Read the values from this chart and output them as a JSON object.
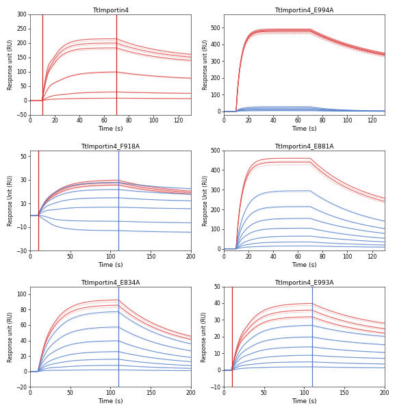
{
  "plots": [
    {
      "title": "TtImportin4",
      "ylabel": "Response unit (RU)",
      "xlabel": "Time (s)",
      "xlim": [
        0,
        130
      ],
      "ylim": [
        -50,
        300
      ],
      "yticks": [
        -50,
        0,
        50,
        100,
        150,
        200,
        250,
        300
      ],
      "xticks": [
        0,
        20,
        40,
        60,
        80,
        100,
        120
      ],
      "assoc_start": 10,
      "assoc_end": 70,
      "vlines": [
        10,
        70
      ],
      "vline_colors": [
        "#cc2222",
        "#cc2222"
      ],
      "color_scheme": "red_only",
      "curves": [
        {
          "plateau": 215,
          "peak": 240,
          "dissoc": 145,
          "tau_a": 8,
          "tau_d": 40
        },
        {
          "plateau": 200,
          "peak": 215,
          "dissoc": 137,
          "tau_a": 8,
          "tau_d": 40
        },
        {
          "plateau": 183,
          "peak": 197,
          "dissoc": 127,
          "tau_a": 8,
          "tau_d": 40
        },
        {
          "plateau": 100,
          "peak": 110,
          "dissoc": 68,
          "tau_a": 12,
          "tau_d": 50
        },
        {
          "plateau": 30,
          "peak": 33,
          "dissoc": 22,
          "tau_a": 15,
          "tau_d": 55
        },
        {
          "plateau": 8,
          "peak": 9,
          "dissoc": 5,
          "tau_a": 18,
          "tau_d": 60
        }
      ],
      "red_color": "#e05555",
      "blue_color": null
    },
    {
      "title": "TtImportin4_E994A",
      "ylabel": "Response unit (RU)",
      "xlabel": "Time (s)",
      "xlim": [
        0,
        130
      ],
      "ylim": [
        -20,
        580
      ],
      "yticks": [
        0,
        100,
        200,
        300,
        400,
        500
      ],
      "xticks": [
        0,
        20,
        40,
        60,
        80,
        100,
        120
      ],
      "assoc_start": 10,
      "assoc_end": 70,
      "vlines": [],
      "vline_colors": [],
      "color_scheme": "red_blue",
      "curves": [
        {
          "plateau": 492,
          "peak": 495,
          "dissoc": 265,
          "tau_a": 4,
          "tau_d": 60,
          "color": "red"
        },
        {
          "plateau": 486,
          "peak": 490,
          "dissoc": 260,
          "tau_a": 4,
          "tau_d": 60,
          "color": "red"
        },
        {
          "plateau": 482,
          "peak": 486,
          "dissoc": 256,
          "tau_a": 4,
          "tau_d": 60,
          "color": "red"
        },
        {
          "plateau": 478,
          "peak": 482,
          "dissoc": 252,
          "tau_a": 4,
          "tau_d": 60,
          "color": "red"
        },
        {
          "plateau": 28,
          "peak": 30,
          "dissoc": 2,
          "tau_a": 5,
          "tau_d": 20,
          "color": "blue"
        },
        {
          "plateau": 20,
          "peak": 22,
          "dissoc": 1.5,
          "tau_a": 5,
          "tau_d": 20,
          "color": "blue"
        },
        {
          "plateau": 14,
          "peak": 15,
          "dissoc": 1,
          "tau_a": 5,
          "tau_d": 20,
          "color": "blue"
        },
        {
          "plateau": 8,
          "peak": 9,
          "dissoc": 0.5,
          "tau_a": 5,
          "tau_d": 20,
          "color": "blue"
        },
        {
          "plateau": 4,
          "peak": 4.5,
          "dissoc": 0.2,
          "tau_a": 5,
          "tau_d": 20,
          "color": "blue"
        }
      ],
      "red_color": "#e05555",
      "blue_color": "#5580cc"
    },
    {
      "title": "TtImportin4_F918A",
      "ylabel": "Response Unit (RU)",
      "xlabel": "Time (s)",
      "xlim": [
        0,
        200
      ],
      "ylim": [
        -30,
        55
      ],
      "yticks": [
        -30,
        -10,
        10,
        30,
        50
      ],
      "xticks": [
        0,
        50,
        100,
        150,
        200
      ],
      "assoc_start": 10,
      "assoc_end": 110,
      "vlines": [
        10,
        110
      ],
      "vline_colors": [
        "#cc2222",
        "#5577cc"
      ],
      "color_scheme": "red_blue",
      "curves": [
        {
          "plateau": 30,
          "peak": 31,
          "dissoc": 17,
          "tau_a": 20,
          "tau_d": 70,
          "color": "red"
        },
        {
          "plateau": 28,
          "peak": 29,
          "dissoc": 16,
          "tau_a": 20,
          "tau_d": 70,
          "color": "red"
        },
        {
          "plateau": 26,
          "peak": 27,
          "dissoc": 15,
          "tau_a": 20,
          "tau_d": 70,
          "color": "red"
        },
        {
          "plateau": 28,
          "peak": 29,
          "dissoc": 20,
          "tau_a": 18,
          "tau_d": 80,
          "color": "blue"
        },
        {
          "plateau": 22,
          "peak": 23,
          "dissoc": 16,
          "tau_a": 18,
          "tau_d": 80,
          "color": "blue"
        },
        {
          "plateau": 15,
          "peak": 16,
          "dissoc": 11,
          "tau_a": 18,
          "tau_d": 80,
          "color": "blue"
        },
        {
          "plateau": 7,
          "peak": 8,
          "dissoc": 5,
          "tau_a": 18,
          "tau_d": 80,
          "color": "blue"
        },
        {
          "plateau": -5,
          "peak": -4,
          "dissoc": -7,
          "tau_a": 18,
          "tau_d": 80,
          "color": "blue"
        },
        {
          "plateau": -13,
          "peak": -12,
          "dissoc": -15,
          "tau_a": 18,
          "tau_d": 80,
          "color": "blue"
        }
      ],
      "red_color": "#e05555",
      "blue_color": "#5580cc"
    },
    {
      "title": "TtImportin4_E881A",
      "ylabel": "Response Unit (RU)",
      "xlabel": "Time (s)",
      "xlim": [
        0,
        130
      ],
      "ylim": [
        -10,
        500
      ],
      "yticks": [
        0,
        100,
        200,
        300,
        400,
        500
      ],
      "xticks": [
        0,
        20,
        40,
        60,
        80,
        100,
        120
      ],
      "assoc_start": 10,
      "assoc_end": 70,
      "vlines": [],
      "vline_colors": [],
      "color_scheme": "red_blue",
      "curves": [
        {
          "plateau": 460,
          "peak": 465,
          "dissoc": 185,
          "tau_a": 5,
          "tau_d": 45,
          "color": "red"
        },
        {
          "plateau": 440,
          "peak": 445,
          "dissoc": 170,
          "tau_a": 5,
          "tau_d": 45,
          "color": "red"
        },
        {
          "plateau": 295,
          "peak": 300,
          "dissoc": 75,
          "tau_a": 7,
          "tau_d": 50,
          "color": "blue"
        },
        {
          "plateau": 215,
          "peak": 220,
          "dissoc": 55,
          "tau_a": 7,
          "tau_d": 50,
          "color": "blue"
        },
        {
          "plateau": 155,
          "peak": 158,
          "dissoc": 40,
          "tau_a": 8,
          "tau_d": 55,
          "color": "blue"
        },
        {
          "plateau": 105,
          "peak": 108,
          "dissoc": 28,
          "tau_a": 8,
          "tau_d": 55,
          "color": "blue"
        },
        {
          "plateau": 65,
          "peak": 67,
          "dissoc": 18,
          "tau_a": 10,
          "tau_d": 60,
          "color": "blue"
        },
        {
          "plateau": 35,
          "peak": 37,
          "dissoc": 10,
          "tau_a": 10,
          "tau_d": 60,
          "color": "blue"
        },
        {
          "plateau": 15,
          "peak": 16,
          "dissoc": 4,
          "tau_a": 12,
          "tau_d": 65,
          "color": "blue"
        }
      ],
      "red_color": "#e05555",
      "blue_color": "#5580cc"
    },
    {
      "title": "TtImportin4_E834A",
      "ylabel": "Response unit (RU)",
      "xlabel": "Time (s)",
      "xlim": [
        0,
        200
      ],
      "ylim": [
        -20,
        110
      ],
      "yticks": [
        -20,
        0,
        20,
        40,
        60,
        80,
        100
      ],
      "xticks": [
        0,
        50,
        100,
        150,
        200
      ],
      "assoc_start": 10,
      "assoc_end": 110,
      "vlines": [
        110
      ],
      "vline_colors": [
        "#5577cc"
      ],
      "color_scheme": "red_blue",
      "curves": [
        {
          "plateau": 93,
          "peak": 95,
          "dissoc": 30,
          "tau_a": 18,
          "tau_d": 65,
          "color": "red"
        },
        {
          "plateau": 86,
          "peak": 88,
          "dissoc": 27,
          "tau_a": 18,
          "tau_d": 65,
          "color": "red"
        },
        {
          "plateau": 78,
          "peak": 80,
          "dissoc": 20,
          "tau_a": 20,
          "tau_d": 70,
          "color": "blue"
        },
        {
          "plateau": 58,
          "peak": 60,
          "dissoc": 15,
          "tau_a": 20,
          "tau_d": 70,
          "color": "blue"
        },
        {
          "plateau": 40,
          "peak": 42,
          "dissoc": 10,
          "tau_a": 20,
          "tau_d": 70,
          "color": "blue"
        },
        {
          "plateau": 26,
          "peak": 27,
          "dissoc": 7,
          "tau_a": 22,
          "tau_d": 75,
          "color": "blue"
        },
        {
          "plateau": 16,
          "peak": 17,
          "dissoc": 4,
          "tau_a": 22,
          "tau_d": 75,
          "color": "blue"
        },
        {
          "plateau": 8,
          "peak": 9,
          "dissoc": 2,
          "tau_a": 24,
          "tau_d": 80,
          "color": "blue"
        },
        {
          "plateau": 2,
          "peak": 2.5,
          "dissoc": 0.5,
          "tau_a": 24,
          "tau_d": 80,
          "color": "blue"
        }
      ],
      "red_color": "#e05555",
      "blue_color": "#5580cc"
    },
    {
      "title": "TtImportin4_E993A",
      "ylabel": "Response unit (RU)",
      "xlabel": "Time (s)",
      "xlim": [
        0,
        200
      ],
      "ylim": [
        -10,
        50
      ],
      "yticks": [
        -10,
        0,
        10,
        20,
        30,
        40,
        50
      ],
      "xticks": [
        0,
        50,
        100,
        150,
        200
      ],
      "assoc_start": 10,
      "assoc_end": 110,
      "vlines": [
        10,
        110
      ],
      "vline_colors": [
        "#cc2222",
        "#5577cc"
      ],
      "color_scheme": "red_blue",
      "curves": [
        {
          "plateau": 40,
          "peak": 42,
          "dissoc": 23,
          "tau_a": 18,
          "tau_d": 75,
          "color": "red"
        },
        {
          "plateau": 36,
          "peak": 38,
          "dissoc": 20,
          "tau_a": 18,
          "tau_d": 75,
          "color": "red"
        },
        {
          "plateau": 32,
          "peak": 34,
          "dissoc": 18,
          "tau_a": 18,
          "tau_d": 75,
          "color": "red"
        },
        {
          "plateau": 27,
          "peak": 28,
          "dissoc": 17,
          "tau_a": 20,
          "tau_d": 80,
          "color": "blue"
        },
        {
          "plateau": 20,
          "peak": 21,
          "dissoc": 13,
          "tau_a": 20,
          "tau_d": 80,
          "color": "blue"
        },
        {
          "plateau": 14,
          "peak": 15,
          "dissoc": 9,
          "tau_a": 20,
          "tau_d": 80,
          "color": "blue"
        },
        {
          "plateau": 9,
          "peak": 9.5,
          "dissoc": 6,
          "tau_a": 22,
          "tau_d": 85,
          "color": "blue"
        },
        {
          "plateau": 5,
          "peak": 5.5,
          "dissoc": 3,
          "tau_a": 22,
          "tau_d": 85,
          "color": "blue"
        },
        {
          "plateau": 2,
          "peak": 2.2,
          "dissoc": 1,
          "tau_a": 24,
          "tau_d": 90,
          "color": "blue"
        }
      ],
      "red_color": "#e05555",
      "blue_color": "#5580cc"
    }
  ]
}
